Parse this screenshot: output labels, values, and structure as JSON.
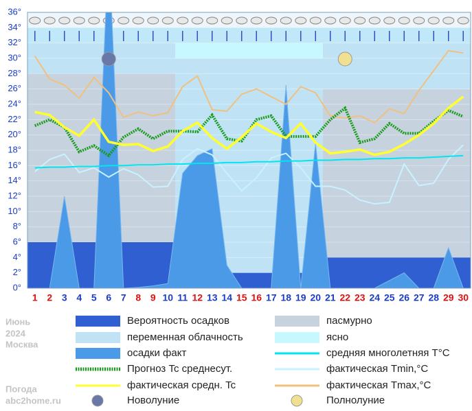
{
  "chart_data": {
    "type": "line",
    "x": [
      1,
      2,
      3,
      4,
      5,
      6,
      7,
      8,
      9,
      10,
      11,
      12,
      13,
      14,
      15,
      16,
      17,
      18,
      19,
      20,
      21,
      22,
      23,
      24,
      25,
      26,
      27,
      28,
      29,
      30
    ],
    "xlim": [
      0.5,
      30.5
    ],
    "red_days": [
      1,
      2,
      8,
      9,
      12,
      15,
      16,
      22,
      23,
      29,
      30
    ],
    "ylim": [
      0,
      36
    ],
    "yticks": [
      {
        "value": 0,
        "label": "0°"
      },
      {
        "value": 2,
        "label": "2°"
      },
      {
        "value": 4,
        "label": "4°"
      },
      {
        "value": 6,
        "label": "6°"
      },
      {
        "value": 8,
        "label": "8°"
      },
      {
        "value": 10,
        "label": "10°"
      },
      {
        "value": 12,
        "label": "12°"
      },
      {
        "value": 14,
        "label": "14°"
      },
      {
        "value": 16,
        "label": "16°"
      },
      {
        "value": 18,
        "label": "18°"
      },
      {
        "value": 20,
        "label": "20°"
      },
      {
        "value": 22,
        "label": "22°"
      },
      {
        "value": 24,
        "label": "24°"
      },
      {
        "value": 26,
        "label": "26°"
      },
      {
        "value": 28,
        "label": "28°"
      },
      {
        "value": 30,
        "label": "30°"
      },
      {
        "value": 32,
        "label": "32°"
      },
      {
        "value": 34,
        "label": "34°"
      },
      {
        "value": 36,
        "label": "36°"
      }
    ],
    "grid": true,
    "series": [
      {
        "name": "Вероятность осадков",
        "kind": "step",
        "color": "#2f5fd0",
        "values": [
          6,
          6,
          6,
          6,
          6,
          6,
          6,
          6,
          6,
          6,
          2,
          2,
          2,
          2,
          2,
          2,
          2,
          2,
          2,
          2,
          4,
          4,
          4,
          4,
          4,
          4,
          4,
          4,
          4,
          4
        ]
      },
      {
        "name": "осадки факт",
        "kind": "area",
        "color": "#4a9ae8",
        "values": [
          0,
          0,
          12,
          0,
          0,
          45,
          0,
          0.1,
          0.3,
          0.6,
          15,
          17.3,
          18.2,
          3,
          0,
          0,
          0,
          26.5,
          0,
          19,
          0,
          0,
          0,
          0,
          1,
          2,
          0,
          0,
          5.3,
          0
        ]
      },
      {
        "name": "фактическая Tmax,°C",
        "kind": "line",
        "color": "#f0c080",
        "values": [
          30.3,
          27.3,
          26.5,
          24.8,
          27.5,
          25.5,
          22.3,
          23,
          22.5,
          22.9,
          26.3,
          27.7,
          23.3,
          23.1,
          25.3,
          26,
          25,
          24,
          26.3,
          25.5,
          22.5,
          22.2,
          22.5,
          21.6,
          23.4,
          22.8,
          25.8,
          28.4,
          31,
          30.7
        ]
      },
      {
        "name": "фактическая Tmin,°C",
        "kind": "line",
        "color": "#c8f2ff",
        "values": [
          15.2,
          16.8,
          17.5,
          15.1,
          15.7,
          14.5,
          15.6,
          14.8,
          13.2,
          13.3,
          16.8,
          18.2,
          17.4,
          15,
          12.7,
          14.4,
          17,
          17.6,
          15.7,
          13.3,
          13.3,
          12.8,
          11.5,
          11,
          11.2,
          16.2,
          13.4,
          13.7,
          16.8,
          18.7
        ]
      },
      {
        "name": "средняя многолетняя T°C",
        "kind": "line",
        "color": "#00e5ee",
        "values": [
          15.7,
          15.8,
          15.8,
          15.9,
          15.9,
          16.0,
          16.0,
          16.1,
          16.1,
          16.2,
          16.2,
          16.3,
          16.3,
          16.4,
          16.4,
          16.5,
          16.5,
          16.6,
          16.6,
          16.7,
          16.7,
          16.8,
          16.8,
          16.9,
          16.9,
          17.0,
          17.0,
          17.1,
          17.2,
          17.3
        ]
      },
      {
        "name": "Прогноз Tc среднесут.",
        "kind": "dotted",
        "color": "#1a9a1a",
        "values": [
          21.2,
          22,
          21,
          17.8,
          18.6,
          17.3,
          19.7,
          20.8,
          19.5,
          20.5,
          20.5,
          20.4,
          22.6,
          19.5,
          19.2,
          22,
          22.5,
          19.8,
          19.8,
          19.8,
          22,
          23.5,
          19,
          19.5,
          21.5,
          20.2,
          20.2,
          21.8,
          23.2,
          22.4
        ]
      },
      {
        "name": "фактическая средн. Tc",
        "kind": "line",
        "color": "#ffff30",
        "values": [
          23,
          22.6,
          21,
          19.9,
          22,
          19.1,
          18.7,
          18.8,
          17.9,
          18.5,
          20.5,
          21.6,
          19.6,
          18.2,
          19.7,
          21.5,
          20.4,
          19.6,
          21.5,
          19,
          17.6,
          17.8,
          18.1,
          17.4,
          17.8,
          18.8,
          20,
          21.5,
          23.5,
          25
        ]
      }
    ],
    "sky_legend": [
      {
        "name": "пасмурно",
        "color": "#c6d3df"
      },
      {
        "name": "переменная облачность",
        "color": "#bfe3f5"
      },
      {
        "name": "ясно",
        "color": "#c8f8ff"
      }
    ],
    "moons": [
      {
        "name": "Новолуние",
        "day": 6,
        "color": "#6878a8"
      },
      {
        "name": "Полнолуние",
        "day": 22,
        "color": "#f0e090"
      }
    ],
    "side_text": [
      "Июнь",
      "2024",
      "Москва",
      "Погода",
      "abc2home.ru"
    ]
  }
}
